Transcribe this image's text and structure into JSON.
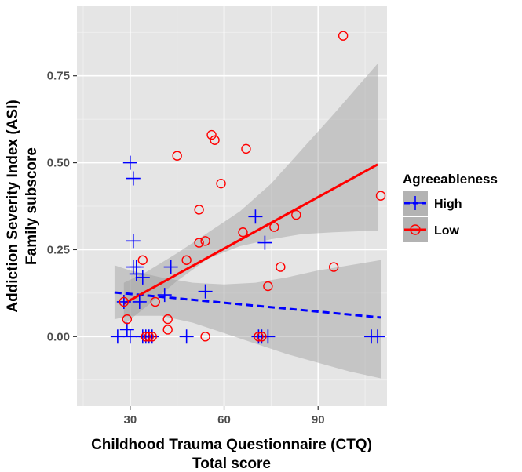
{
  "chart_data": {
    "type": "scatter",
    "title": "",
    "xlabel_lines": [
      "Childhood Trauma Questionnaire (CTQ)",
      "Total score"
    ],
    "ylabel_lines": [
      "Addiction Severity Index (ASI)",
      "Family subscore"
    ],
    "xlim": [
      13,
      112
    ],
    "ylim": [
      -0.2,
      0.95
    ],
    "x_ticks": [
      30,
      60,
      90
    ],
    "y_ticks": [
      0.0,
      0.25,
      0.5,
      0.75
    ],
    "y_tick_labels": [
      "0.00",
      "0.25",
      "0.50",
      "0.75"
    ],
    "grid": true,
    "legend": {
      "title": "Agreeableness",
      "position": "right"
    },
    "series": [
      {
        "name": "High",
        "color": "#0000ff",
        "marker": "plus",
        "line_style": "dashed",
        "points": [
          [
            26,
            0
          ],
          [
            28,
            0.1
          ],
          [
            29,
            0.02
          ],
          [
            30,
            0
          ],
          [
            30,
            0.5
          ],
          [
            31,
            0.455
          ],
          [
            31,
            0.275
          ],
          [
            31,
            0.2
          ],
          [
            32,
            0.18
          ],
          [
            32,
            0.2
          ],
          [
            33,
            0.1
          ],
          [
            34,
            0.17
          ],
          [
            34,
            0
          ],
          [
            35,
            0
          ],
          [
            36,
            0
          ],
          [
            37,
            0
          ],
          [
            41,
            0.12
          ],
          [
            43,
            0.2
          ],
          [
            48,
            0
          ],
          [
            54,
            0.13
          ],
          [
            70,
            0.345
          ],
          [
            71,
            0
          ],
          [
            72,
            0
          ],
          [
            73,
            0.27
          ],
          [
            74,
            0
          ],
          [
            107,
            0
          ],
          [
            109,
            0
          ]
        ],
        "fit": {
          "x": [
            25,
            110
          ],
          "y": [
            0.127,
            0.055
          ]
        },
        "ci": {
          "x": [
            25,
            30,
            40,
            50,
            60,
            70,
            80,
            90,
            100,
            110
          ],
          "upper": [
            0.205,
            0.19,
            0.17,
            0.155,
            0.15,
            0.155,
            0.17,
            0.19,
            0.205,
            0.22
          ],
          "lower": [
            0.05,
            0.06,
            0.06,
            0.04,
            0.01,
            -0.02,
            -0.05,
            -0.075,
            -0.1,
            -0.12
          ]
        }
      },
      {
        "name": "Low",
        "color": "#ff0000",
        "marker": "circle",
        "line_style": "solid",
        "points": [
          [
            28,
            0.1
          ],
          [
            29,
            0.05
          ],
          [
            34,
            0.22
          ],
          [
            35,
            0
          ],
          [
            36,
            0
          ],
          [
            37,
            0
          ],
          [
            38,
            0.1
          ],
          [
            42,
            0.05
          ],
          [
            42,
            0.02
          ],
          [
            45,
            0.52
          ],
          [
            48,
            0.22
          ],
          [
            52,
            0.365
          ],
          [
            52,
            0.27
          ],
          [
            54,
            0.275
          ],
          [
            54,
            0
          ],
          [
            56,
            0.58
          ],
          [
            57,
            0.565
          ],
          [
            59,
            0.44
          ],
          [
            66,
            0.3
          ],
          [
            67,
            0.54
          ],
          [
            71,
            0
          ],
          [
            72,
            0
          ],
          [
            74,
            0.145
          ],
          [
            76,
            0.315
          ],
          [
            78,
            0.2
          ],
          [
            83,
            0.35
          ],
          [
            95,
            0.2
          ],
          [
            98,
            0.865
          ],
          [
            110,
            0.405
          ]
        ],
        "fit": {
          "x": [
            28,
            109
          ],
          "y": [
            0.095,
            0.495
          ]
        },
        "ci": {
          "x": [
            28,
            35,
            45,
            55,
            65,
            75,
            85,
            95,
            109
          ],
          "upper": [
            0.155,
            0.185,
            0.24,
            0.3,
            0.36,
            0.44,
            0.54,
            0.64,
            0.785
          ],
          "lower": [
            0.035,
            0.085,
            0.16,
            0.225,
            0.26,
            0.28,
            0.295,
            0.3,
            0.305
          ]
        }
      }
    ]
  }
}
